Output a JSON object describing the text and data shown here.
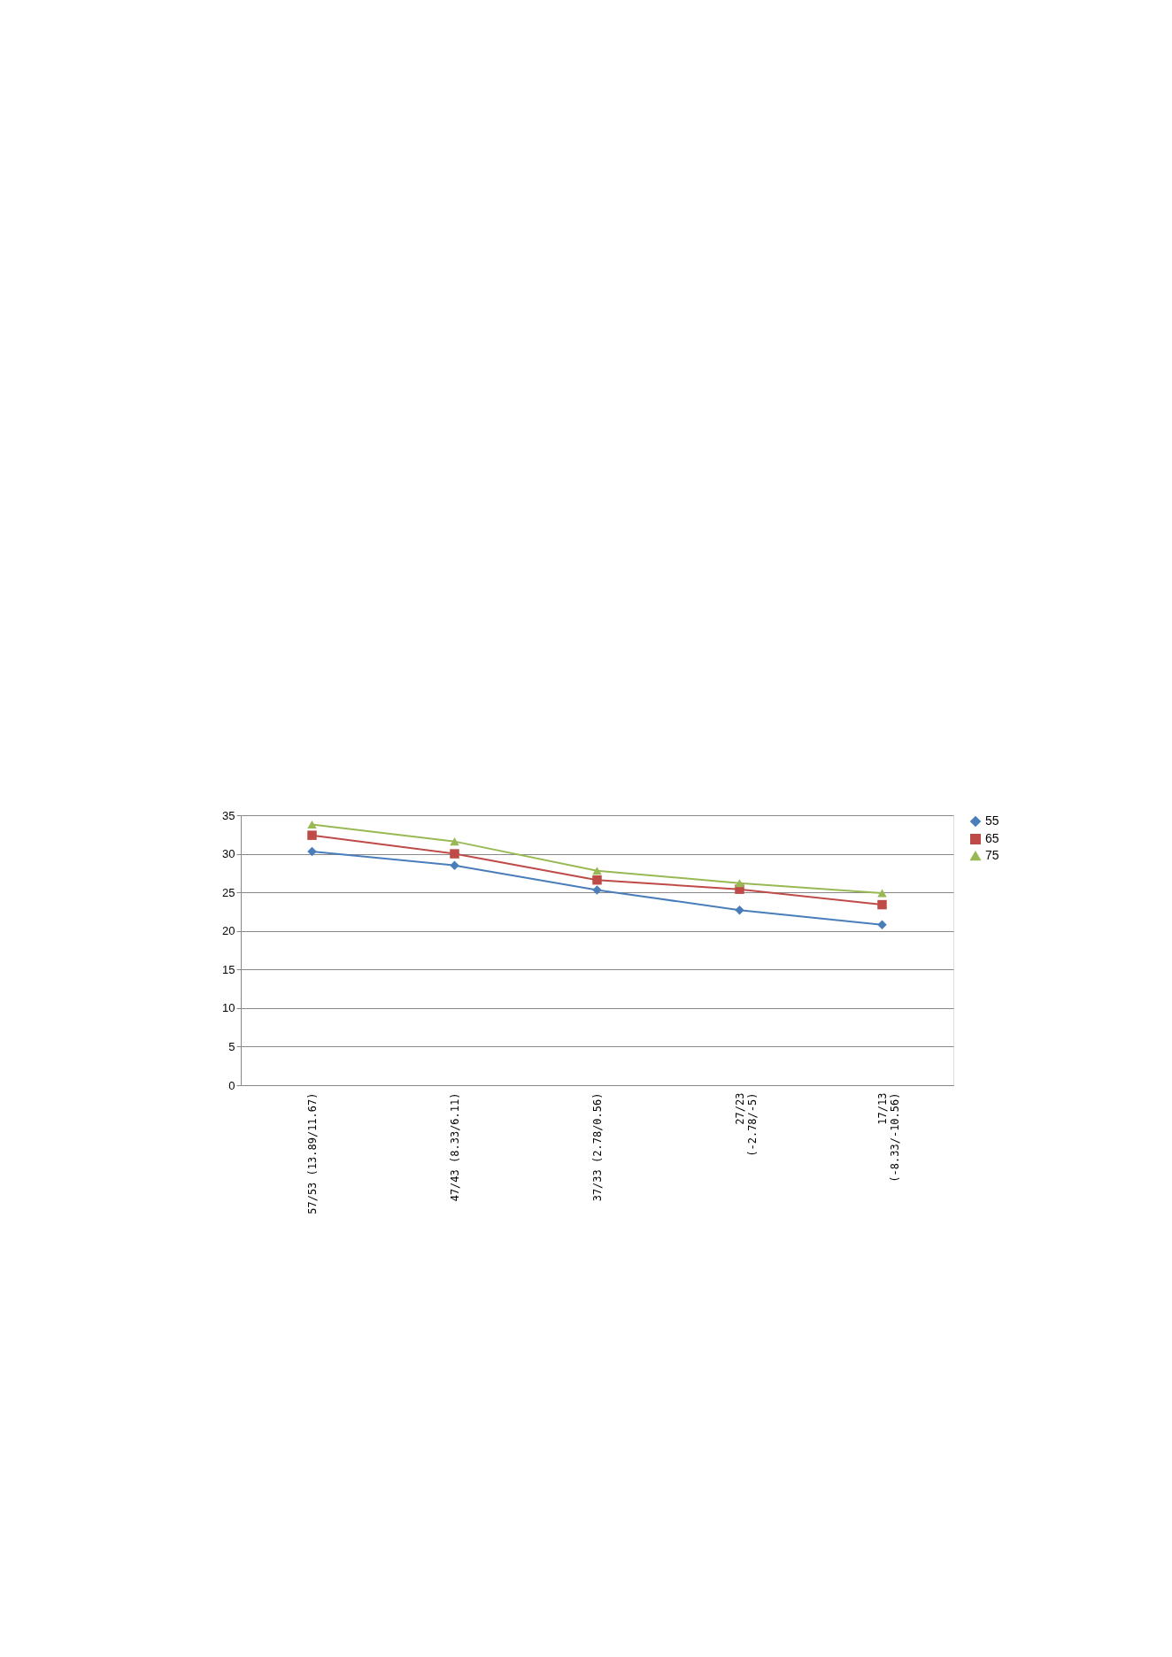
{
  "chart_data": {
    "type": "line",
    "categories": [
      "57/53 (13.89/11.67)",
      "47/43 (8.33/6.11)",
      "37/33 (2.78/0.56)",
      "27/23\n(-2.78/-5)",
      "17/13\n(-8.33/-10.56)"
    ],
    "series": [
      {
        "name": "55",
        "color": "#4a7ebb",
        "marker": "diamond",
        "values": [
          30.3,
          28.5,
          25.3,
          22.7,
          20.8
        ]
      },
      {
        "name": "65",
        "color": "#be4b48",
        "marker": "square",
        "values": [
          32.4,
          30.0,
          26.6,
          25.4,
          23.4
        ]
      },
      {
        "name": "75",
        "color": "#98b954",
        "marker": "triangle",
        "values": [
          33.8,
          31.6,
          27.8,
          26.2,
          24.9
        ]
      }
    ],
    "ylim": [
      0,
      35
    ],
    "yticks": [
      0,
      5,
      10,
      15,
      20,
      25,
      30,
      35
    ],
    "grid": "y",
    "legend": "right",
    "line_style": "solid"
  }
}
